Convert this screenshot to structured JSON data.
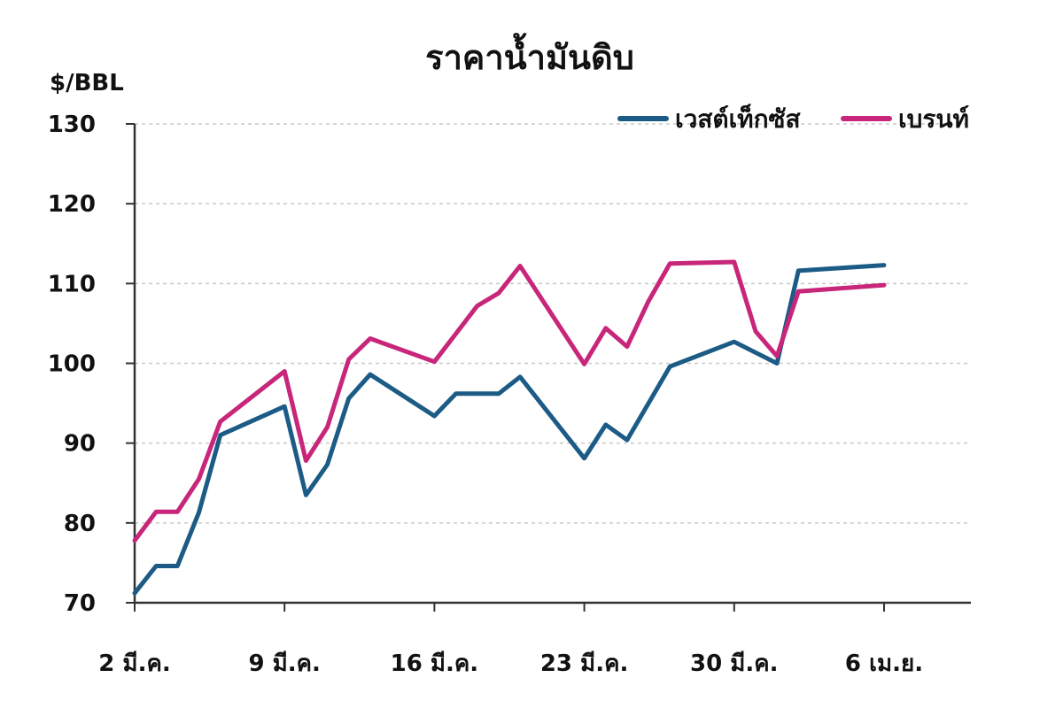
{
  "chart_data": {
    "type": "line",
    "title": "ราคาน้ำมันดิบ",
    "ylabel": "$/BBL",
    "ylim": [
      70,
      130
    ],
    "yticks": [
      70,
      80,
      90,
      100,
      110,
      120,
      130
    ],
    "xticks": [
      {
        "day": 0,
        "label": "2 มี.ค."
      },
      {
        "day": 7,
        "label": "9 มี.ค."
      },
      {
        "day": 14,
        "label": "16 มี.ค."
      },
      {
        "day": 21,
        "label": "23 มี.ค."
      },
      {
        "day": 28,
        "label": "30 มี.ค."
      },
      {
        "day": 35,
        "label": "6 เม.ย."
      }
    ],
    "xlim": [
      0,
      39
    ],
    "grid": true,
    "legend_position": "top-right",
    "series": [
      {
        "name": "เวสต์เท็กซัส",
        "color": "#1b5b86",
        "points": [
          [
            0,
            71.2
          ],
          [
            1,
            74.6
          ],
          [
            2,
            74.6
          ],
          [
            3,
            81.3
          ],
          [
            4,
            91.0
          ],
          [
            7,
            94.6
          ],
          [
            8,
            83.5
          ],
          [
            9,
            87.3
          ],
          [
            10,
            95.6
          ],
          [
            11,
            98.6
          ],
          [
            14,
            93.4
          ],
          [
            15,
            96.2
          ],
          [
            17,
            96.2
          ],
          [
            18,
            98.3
          ],
          [
            21,
            88.1
          ],
          [
            22,
            92.3
          ],
          [
            23,
            90.4
          ],
          [
            25,
            99.6
          ],
          [
            28,
            102.7
          ],
          [
            30,
            100.0
          ],
          [
            31,
            111.6
          ],
          [
            35,
            112.3
          ]
        ]
      },
      {
        "name": "เบรนท์",
        "color": "#c8267a",
        "points": [
          [
            0,
            77.8
          ],
          [
            1,
            81.4
          ],
          [
            2,
            81.4
          ],
          [
            3,
            85.5
          ],
          [
            4,
            92.7
          ],
          [
            7,
            99.0
          ],
          [
            8,
            87.8
          ],
          [
            9,
            92.0
          ],
          [
            10,
            100.5
          ],
          [
            11,
            103.1
          ],
          [
            14,
            100.2
          ],
          [
            16,
            107.2
          ],
          [
            17,
            108.8
          ],
          [
            18,
            112.2
          ],
          [
            21,
            99.9
          ],
          [
            22,
            104.4
          ],
          [
            23,
            102.1
          ],
          [
            24,
            107.8
          ],
          [
            25,
            112.5
          ],
          [
            28,
            112.7
          ],
          [
            29,
            104.0
          ],
          [
            30,
            100.9
          ],
          [
            31,
            109.0
          ],
          [
            35,
            109.8
          ]
        ]
      }
    ]
  }
}
